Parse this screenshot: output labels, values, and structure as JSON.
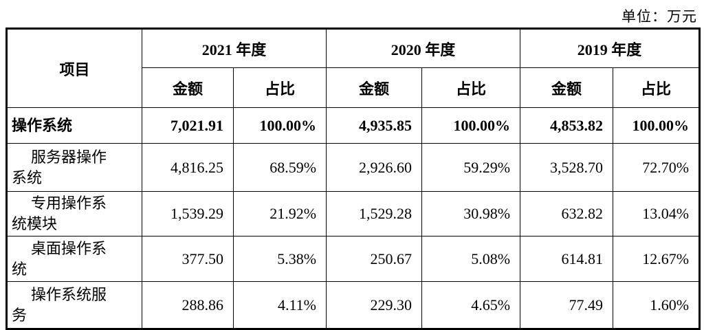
{
  "unit_label": "单位：万元",
  "table": {
    "item_header": "项目",
    "col_groups": [
      {
        "year": "2021 年度",
        "amount_label": "金额",
        "ratio_label": "占比"
      },
      {
        "year": "2020 年度",
        "amount_label": "金额",
        "ratio_label": "占比"
      },
      {
        "year": "2019 年度",
        "amount_label": "金额",
        "ratio_label": "占比"
      }
    ],
    "rows": [
      {
        "item": "操作系统",
        "values": [
          "7,021.91",
          "100.00%",
          "4,935.85",
          "100.00%",
          "4,853.82",
          "100.00%"
        ]
      },
      {
        "item": "服务器操作\n系统",
        "values": [
          "4,816.25",
          "68.59%",
          "2,926.60",
          "59.29%",
          "3,528.70",
          "72.70%"
        ]
      },
      {
        "item": "专用操作系\n统模块",
        "values": [
          "1,539.29",
          "21.92%",
          "1,529.28",
          "30.98%",
          "632.82",
          "13.04%"
        ]
      },
      {
        "item": "桌面操作系\n统",
        "values": [
          "377.50",
          "5.38%",
          "250.67",
          "5.08%",
          "614.81",
          "12.67%"
        ]
      },
      {
        "item": "操作系统服\n务",
        "values": [
          "288.86",
          "4.11%",
          "229.30",
          "4.65%",
          "77.49",
          "1.60%"
        ]
      }
    ]
  }
}
